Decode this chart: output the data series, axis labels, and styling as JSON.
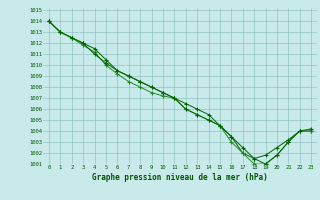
{
  "title": "Graphe pression niveau de la mer (hPa)",
  "x": [
    0,
    1,
    2,
    3,
    4,
    5,
    6,
    7,
    8,
    9,
    10,
    11,
    12,
    13,
    14,
    15,
    16,
    17,
    18,
    19,
    20,
    21,
    22,
    23
  ],
  "series": [
    [
      1014.0,
      1013.0,
      1012.5,
      1012.0,
      1011.5,
      1010.5,
      1009.5,
      1009.0,
      1008.5,
      1008.0,
      1007.5,
      1007.0,
      1006.5,
      1006.0,
      1005.5,
      1004.5,
      1003.5,
      1002.0,
      1001.5,
      1001.8,
      1002.5,
      1003.2,
      1004.0,
      1004.0
    ],
    [
      1014.0,
      1013.0,
      1012.5,
      1011.8,
      1011.2,
      1010.0,
      1009.2,
      1008.5,
      1008.0,
      1007.5,
      1007.2,
      1007.0,
      1006.0,
      1005.5,
      1005.0,
      1004.5,
      1003.0,
      1002.0,
      1001.0,
      1001.0,
      1001.8,
      1003.0,
      1004.0,
      1004.0
    ],
    [
      1014.0,
      1013.0,
      1012.5,
      1012.0,
      1011.0,
      1010.2,
      1009.5,
      1009.0,
      1008.5,
      1008.0,
      1007.5,
      1007.0,
      1006.0,
      1005.5,
      1005.0,
      1004.5,
      1003.5,
      1002.5,
      1001.5,
      1001.0,
      1001.8,
      1003.0,
      1004.0,
      1004.2
    ]
  ],
  "line_colors": [
    "#006400",
    "#228B22",
    "#006400"
  ],
  "marker": "+",
  "marker_size": 3,
  "ylim": [
    1001,
    1015
  ],
  "ytick_step": 1,
  "xticks": [
    0,
    1,
    2,
    3,
    4,
    5,
    6,
    7,
    8,
    9,
    10,
    11,
    12,
    13,
    14,
    15,
    16,
    17,
    18,
    19,
    20,
    21,
    22,
    23
  ],
  "background_color": "#c8eaea",
  "grid_color": "#88bbbb",
  "text_color": "#005500",
  "tick_fontsize": 4.0,
  "label_fontsize": 5.5
}
